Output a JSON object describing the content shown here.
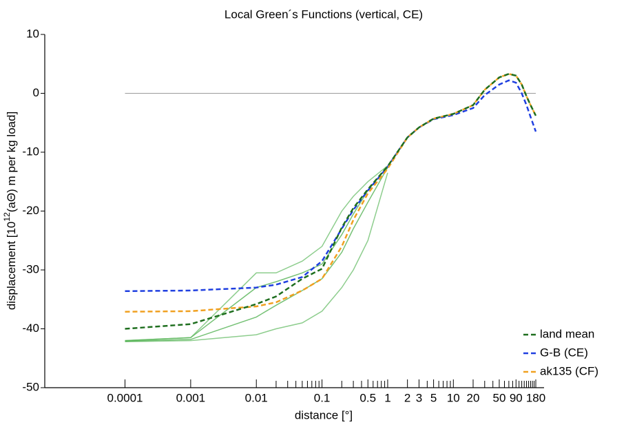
{
  "chart_data": {
    "type": "line",
    "title": "Local Green´s Functions (vertical, CE)",
    "xlabel": "distance [°]",
    "ylabel": [
      "displacement [10",
      "12",
      "(aΘ) m per kg load]"
    ],
    "xscale": "log",
    "xlim": [
      6e-06,
      180
    ],
    "ylim": [
      -50,
      10
    ],
    "xticks": [
      0.0001,
      0.001,
      0.01,
      0.1,
      0.5,
      1,
      2,
      3,
      5,
      10,
      20,
      50,
      90,
      180
    ],
    "minor_xticks": [
      0.02,
      0.03,
      0.04,
      0.05,
      0.06,
      0.07,
      0.08,
      0.09,
      0.2,
      0.3,
      0.4,
      0.6,
      0.7,
      0.8,
      0.9,
      4,
      6,
      7,
      8,
      9,
      30,
      40,
      60,
      70,
      80,
      100,
      110,
      120,
      130,
      140,
      150,
      160,
      170
    ],
    "yticks": [
      10,
      0,
      -10,
      -20,
      -30,
      -40,
      -50
    ],
    "reference_line": 0,
    "legend": "lower right",
    "x": [
      0.0001,
      0.001,
      0.01,
      0.02,
      0.05,
      0.1,
      0.2,
      0.3,
      0.5,
      1,
      2,
      3,
      5,
      10,
      20,
      30,
      50,
      70,
      90,
      110,
      130,
      150,
      180
    ],
    "ensemble": [
      {
        "color": "#5cb85c",
        "values": [
          -42.2,
          -42,
          -41,
          -40,
          -39,
          -37,
          -33,
          -30,
          -25,
          -13.5,
          null,
          null,
          null,
          null,
          null,
          null,
          null,
          null,
          null,
          null,
          null,
          null,
          null
        ]
      },
      {
        "color": "#3aa63a",
        "values": [
          -42.1,
          -41.8,
          -38,
          -36,
          -33.5,
          -31.5,
          -27,
          -23,
          -18.5,
          -12.6,
          null,
          null,
          null,
          null,
          null,
          null,
          null,
          null,
          null,
          null,
          null,
          null,
          null
        ]
      },
      {
        "color": "#3aa63a",
        "values": [
          -42,
          -41.5,
          -33,
          -32,
          -30.5,
          -29,
          -24,
          -20.5,
          -16.5,
          -12.4,
          null,
          null,
          null,
          null,
          null,
          null,
          null,
          null,
          null,
          null,
          null,
          null,
          null
        ]
      },
      {
        "color": "#5cb85c",
        "values": [
          -42,
          -41.5,
          -30.5,
          -30.5,
          -28.5,
          -26,
          -20,
          -17.5,
          -15,
          -12.3,
          null,
          null,
          null,
          null,
          null,
          null,
          null,
          null,
          null,
          null,
          null,
          null,
          null
        ]
      }
    ],
    "series": [
      {
        "name": "land mean",
        "color": "#1e6e1e",
        "values": [
          -40,
          -39.2,
          -35.8,
          -34.5,
          -31.5,
          -29.8,
          -22.8,
          -19.5,
          -16.3,
          -12.4,
          -7.5,
          -5.8,
          -4.3,
          -3.5,
          -2,
          0.6,
          2.7,
          3.3,
          3,
          1.5,
          -0.5,
          -2,
          -3.8
        ]
      },
      {
        "name": "G-B (CE)",
        "color": "#1f3fe0",
        "values": [
          -33.6,
          -33.5,
          -33,
          -32.5,
          -31.2,
          -28.5,
          -23,
          -19.8,
          -16.5,
          -12.5,
          -7.5,
          -5.8,
          -4.4,
          -3.7,
          -2.5,
          -0.3,
          1.5,
          2.2,
          1.8,
          0,
          -2,
          -4,
          -6.5
        ]
      },
      {
        "name": "ak135 (CF)",
        "color": "#f0a020",
        "values": [
          -37.1,
          -37,
          -36.2,
          -35.5,
          -33.5,
          -31.5,
          -26,
          -21.5,
          -17,
          -12.8,
          -7.5,
          -5.8,
          -4.3,
          -3.5,
          -2,
          0.6,
          2.7,
          3.3,
          3,
          1.5,
          -0.5,
          -2,
          -3.8
        ]
      }
    ]
  }
}
